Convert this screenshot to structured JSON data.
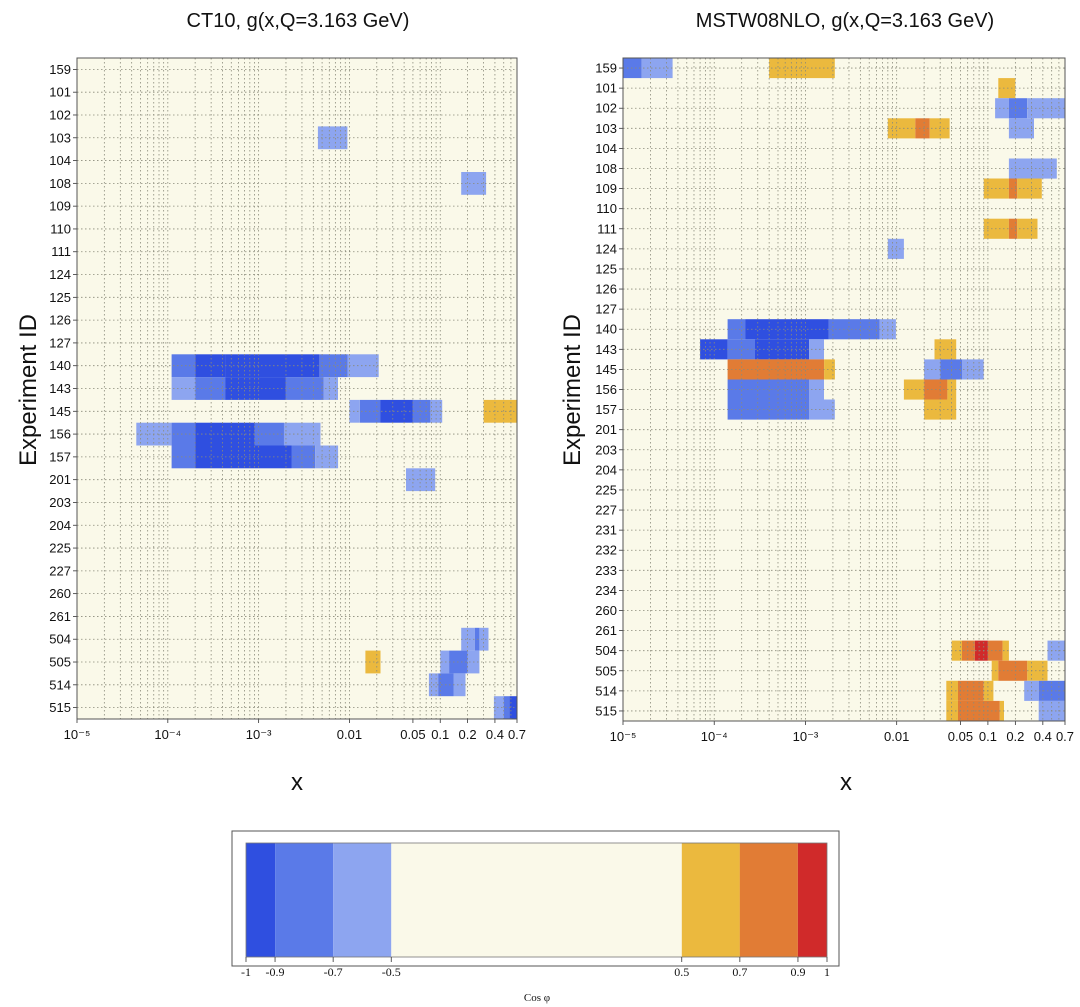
{
  "chart_data": [
    {
      "type": "heatmap",
      "title": "CT10, g(x,Q=3.163 GeV)",
      "xlabel": "x",
      "ylabel": "Experiment ID",
      "x_scale": "log",
      "xlim": [
        1e-05,
        0.7
      ],
      "x_ticks": [
        1e-05,
        0.0001,
        0.001,
        0.01,
        0.05,
        0.1,
        0.2,
        0.4,
        0.7
      ],
      "x_tick_labels": [
        "10⁻⁵",
        "10⁻⁴",
        "10⁻³",
        "0.01",
        "0.05",
        "0.1",
        "0.2",
        "0.4",
        "0.7"
      ],
      "rows": [
        "159",
        "101",
        "102",
        "103",
        "104",
        "108",
        "109",
        "110",
        "111",
        "124",
        "125",
        "126",
        "127",
        "140",
        "143",
        "145",
        "156",
        "157",
        "201",
        "203",
        "204",
        "225",
        "227",
        "260",
        "261",
        "504",
        "505",
        "514",
        "515"
      ],
      "grid": true,
      "cells": [
        {
          "row": "103",
          "x0": 0.0045,
          "x1": 0.0095,
          "cos": -0.6
        },
        {
          "row": "108",
          "x0": 0.17,
          "x1": 0.32,
          "cos": -0.6
        },
        {
          "row": "140",
          "x0": 0.00011,
          "x1": 0.0002,
          "cos": -0.8
        },
        {
          "row": "140",
          "x0": 0.0002,
          "x1": 0.00043,
          "cos": -0.95
        },
        {
          "row": "140",
          "x0": 0.00043,
          "x1": 0.0047,
          "cos": -0.95
        },
        {
          "row": "140",
          "x0": 0.0047,
          "x1": 0.0095,
          "cos": -0.8
        },
        {
          "row": "140",
          "x0": 0.0095,
          "x1": 0.021,
          "cos": -0.6
        },
        {
          "row": "143",
          "x0": 0.00011,
          "x1": 0.0002,
          "cos": -0.6
        },
        {
          "row": "143",
          "x0": 0.0002,
          "x1": 0.00043,
          "cos": -0.8
        },
        {
          "row": "143",
          "x0": 0.00043,
          "x1": 0.002,
          "cos": -0.95
        },
        {
          "row": "143",
          "x0": 0.002,
          "x1": 0.0052,
          "cos": -0.8
        },
        {
          "row": "143",
          "x0": 0.0052,
          "x1": 0.0075,
          "cos": -0.6
        },
        {
          "row": "145",
          "x0": 0.01,
          "x1": 0.013,
          "cos": -0.6
        },
        {
          "row": "145",
          "x0": 0.013,
          "x1": 0.022,
          "cos": -0.8
        },
        {
          "row": "145",
          "x0": 0.022,
          "x1": 0.05,
          "cos": -0.95
        },
        {
          "row": "145",
          "x0": 0.05,
          "x1": 0.078,
          "cos": -0.8
        },
        {
          "row": "145",
          "x0": 0.078,
          "x1": 0.105,
          "cos": -0.6
        },
        {
          "row": "145",
          "x0": 0.3,
          "x1": 0.7,
          "cos": 0.6
        },
        {
          "row": "156",
          "x0": 4.5e-05,
          "x1": 0.00011,
          "cos": -0.6
        },
        {
          "row": "156",
          "x0": 0.00011,
          "x1": 0.0002,
          "cos": -0.8
        },
        {
          "row": "156",
          "x0": 0.0002,
          "x1": 0.0009,
          "cos": -0.95
        },
        {
          "row": "156",
          "x0": 0.0009,
          "x1": 0.0019,
          "cos": -0.8
        },
        {
          "row": "156",
          "x0": 0.0019,
          "x1": 0.0048,
          "cos": -0.6
        },
        {
          "row": "157",
          "x0": 0.00011,
          "x1": 0.0002,
          "cos": -0.8
        },
        {
          "row": "157",
          "x0": 0.0002,
          "x1": 0.0023,
          "cos": -0.95
        },
        {
          "row": "157",
          "x0": 0.0023,
          "x1": 0.0042,
          "cos": -0.8
        },
        {
          "row": "157",
          "x0": 0.0042,
          "x1": 0.0075,
          "cos": -0.6
        },
        {
          "row": "201",
          "x0": 0.042,
          "x1": 0.088,
          "cos": -0.6
        },
        {
          "row": "504",
          "x0": 0.17,
          "x1": 0.24,
          "cos": -0.6
        },
        {
          "row": "504",
          "x0": 0.24,
          "x1": 0.27,
          "cos": -0.8
        },
        {
          "row": "504",
          "x0": 0.27,
          "x1": 0.34,
          "cos": -0.6
        },
        {
          "row": "505",
          "x0": 0.015,
          "x1": 0.022,
          "cos": 0.6
        },
        {
          "row": "505",
          "x0": 0.1,
          "x1": 0.125,
          "cos": -0.6
        },
        {
          "row": "505",
          "x0": 0.125,
          "x1": 0.2,
          "cos": -0.8
        },
        {
          "row": "505",
          "x0": 0.2,
          "x1": 0.27,
          "cos": -0.6
        },
        {
          "row": "514",
          "x0": 0.075,
          "x1": 0.095,
          "cos": -0.6
        },
        {
          "row": "514",
          "x0": 0.095,
          "x1": 0.14,
          "cos": -0.8
        },
        {
          "row": "514",
          "x0": 0.14,
          "x1": 0.19,
          "cos": -0.6
        },
        {
          "row": "515",
          "x0": 0.39,
          "x1": 0.5,
          "cos": -0.6
        },
        {
          "row": "515",
          "x0": 0.5,
          "x1": 0.58,
          "cos": -0.8
        },
        {
          "row": "515",
          "x0": 0.58,
          "x1": 0.7,
          "cos": -0.95
        }
      ]
    },
    {
      "type": "heatmap",
      "title": "MSTW08NLO, g(x,Q=3.163 GeV)",
      "xlabel": "x",
      "ylabel": "Experiment ID",
      "x_scale": "log",
      "xlim": [
        1e-05,
        0.7
      ],
      "x_ticks": [
        1e-05,
        0.0001,
        0.001,
        0.01,
        0.05,
        0.1,
        0.2,
        0.4,
        0.7
      ],
      "x_tick_labels": [
        "10⁻⁵",
        "10⁻⁴",
        "10⁻³",
        "0.01",
        "0.05",
        "0.1",
        "0.2",
        "0.4",
        "0.7"
      ],
      "rows": [
        "159",
        "101",
        "102",
        "103",
        "104",
        "108",
        "109",
        "110",
        "111",
        "124",
        "125",
        "126",
        "127",
        "140",
        "143",
        "145",
        "156",
        "157",
        "201",
        "203",
        "204",
        "225",
        "227",
        "231",
        "232",
        "233",
        "234",
        "260",
        "261",
        "504",
        "505",
        "514",
        "515"
      ],
      "grid": true,
      "cells": [
        {
          "row": "159",
          "x0": 1e-05,
          "x1": 1.6e-05,
          "cos": -0.8
        },
        {
          "row": "159",
          "x0": 1.6e-05,
          "x1": 3.5e-05,
          "cos": -0.6
        },
        {
          "row": "159",
          "x0": 0.0004,
          "x1": 0.0021,
          "cos": 0.6
        },
        {
          "row": "101",
          "x0": 0.13,
          "x1": 0.2,
          "cos": 0.6
        },
        {
          "row": "102",
          "x0": 0.12,
          "x1": 0.17,
          "cos": -0.6
        },
        {
          "row": "102",
          "x0": 0.17,
          "x1": 0.27,
          "cos": -0.8
        },
        {
          "row": "102",
          "x0": 0.27,
          "x1": 0.7,
          "cos": -0.6
        },
        {
          "row": "103",
          "x0": 0.008,
          "x1": 0.016,
          "cos": 0.6
        },
        {
          "row": "103",
          "x0": 0.016,
          "x1": 0.023,
          "cos": 0.8
        },
        {
          "row": "103",
          "x0": 0.023,
          "x1": 0.038,
          "cos": 0.6
        },
        {
          "row": "103",
          "x0": 0.17,
          "x1": 0.32,
          "cos": -0.6
        },
        {
          "row": "108",
          "x0": 0.17,
          "x1": 0.57,
          "cos": -0.6
        },
        {
          "row": "109",
          "x0": 0.09,
          "x1": 0.17,
          "cos": 0.6
        },
        {
          "row": "109",
          "x0": 0.17,
          "x1": 0.21,
          "cos": 0.8
        },
        {
          "row": "109",
          "x0": 0.21,
          "x1": 0.39,
          "cos": 0.6
        },
        {
          "row": "111",
          "x0": 0.09,
          "x1": 0.17,
          "cos": 0.6
        },
        {
          "row": "111",
          "x0": 0.17,
          "x1": 0.21,
          "cos": 0.8
        },
        {
          "row": "111",
          "x0": 0.21,
          "x1": 0.35,
          "cos": 0.6
        },
        {
          "row": "124",
          "x0": 0.008,
          "x1": 0.012,
          "cos": -0.6
        },
        {
          "row": "140",
          "x0": 0.00014,
          "x1": 0.00022,
          "cos": -0.8
        },
        {
          "row": "140",
          "x0": 0.00022,
          "x1": 0.0018,
          "cos": -0.95
        },
        {
          "row": "140",
          "x0": 0.0018,
          "x1": 0.0065,
          "cos": -0.8
        },
        {
          "row": "140",
          "x0": 0.0065,
          "x1": 0.0098,
          "cos": -0.6
        },
        {
          "row": "143",
          "x0": 7e-05,
          "x1": 0.00014,
          "cos": -0.95
        },
        {
          "row": "143",
          "x0": 0.00014,
          "x1": 0.00028,
          "cos": -0.8
        },
        {
          "row": "143",
          "x0": 0.00028,
          "x1": 0.0011,
          "cos": -0.95
        },
        {
          "row": "143",
          "x0": 0.0011,
          "x1": 0.0016,
          "cos": -0.6
        },
        {
          "row": "143",
          "x0": 0.026,
          "x1": 0.045,
          "cos": 0.6
        },
        {
          "row": "145",
          "x0": 0.00014,
          "x1": 0.0016,
          "cos": 0.8
        },
        {
          "row": "145",
          "x0": 0.0016,
          "x1": 0.0021,
          "cos": 0.6
        },
        {
          "row": "145",
          "x0": 0.02,
          "x1": 0.03,
          "cos": -0.6
        },
        {
          "row": "145",
          "x0": 0.03,
          "x1": 0.052,
          "cos": -0.8
        },
        {
          "row": "145",
          "x0": 0.052,
          "x1": 0.09,
          "cos": -0.6
        },
        {
          "row": "156",
          "x0": 0.00014,
          "x1": 0.0011,
          "cos": -0.8
        },
        {
          "row": "156",
          "x0": 0.0011,
          "x1": 0.0016,
          "cos": -0.6
        },
        {
          "row": "156",
          "x0": 0.012,
          "x1": 0.02,
          "cos": 0.6
        },
        {
          "row": "156",
          "x0": 0.02,
          "x1": 0.036,
          "cos": 0.8
        },
        {
          "row": "156",
          "x0": 0.036,
          "x1": 0.045,
          "cos": 0.6
        },
        {
          "row": "157",
          "x0": 0.00014,
          "x1": 0.0011,
          "cos": -0.8
        },
        {
          "row": "157",
          "x0": 0.0011,
          "x1": 0.0021,
          "cos": -0.6
        },
        {
          "row": "157",
          "x0": 0.02,
          "x1": 0.045,
          "cos": 0.6
        },
        {
          "row": "504",
          "x0": 0.04,
          "x1": 0.052,
          "cos": 0.6
        },
        {
          "row": "504",
          "x0": 0.052,
          "x1": 0.072,
          "cos": 0.8
        },
        {
          "row": "504",
          "x0": 0.072,
          "x1": 0.1,
          "cos": 0.95
        },
        {
          "row": "504",
          "x0": 0.1,
          "x1": 0.145,
          "cos": 0.8
        },
        {
          "row": "504",
          "x0": 0.145,
          "x1": 0.17,
          "cos": 0.6
        },
        {
          "row": "504",
          "x0": 0.45,
          "x1": 0.7,
          "cos": -0.6
        },
        {
          "row": "505",
          "x0": 0.11,
          "x1": 0.13,
          "cos": 0.6
        },
        {
          "row": "505",
          "x0": 0.13,
          "x1": 0.27,
          "cos": 0.8
        },
        {
          "row": "505",
          "x0": 0.27,
          "x1": 0.45,
          "cos": 0.6
        },
        {
          "row": "514",
          "x0": 0.035,
          "x1": 0.047,
          "cos": 0.6
        },
        {
          "row": "514",
          "x0": 0.047,
          "x1": 0.09,
          "cos": 0.8
        },
        {
          "row": "514",
          "x0": 0.09,
          "x1": 0.115,
          "cos": 0.6
        },
        {
          "row": "514",
          "x0": 0.25,
          "x1": 0.36,
          "cos": -0.6
        },
        {
          "row": "514",
          "x0": 0.36,
          "x1": 0.7,
          "cos": -0.8
        },
        {
          "row": "515",
          "x0": 0.035,
          "x1": 0.047,
          "cos": 0.6
        },
        {
          "row": "515",
          "x0": 0.047,
          "x1": 0.135,
          "cos": 0.8
        },
        {
          "row": "515",
          "x0": 0.135,
          "x1": 0.15,
          "cos": 0.6
        },
        {
          "row": "515",
          "x0": 0.36,
          "x1": 0.7,
          "cos": -0.6
        }
      ]
    }
  ],
  "colorbar": {
    "label": "Cos φ",
    "range": [
      -1,
      1
    ],
    "ticks": [
      -1,
      -0.9,
      -0.7,
      -0.5,
      0.5,
      0.7,
      0.9,
      1
    ],
    "tick_labels": [
      "-1",
      "-0.9",
      "-0.7",
      "-0.5",
      "0.5",
      "0.7",
      "0.9",
      "1"
    ],
    "bands": [
      {
        "from": -1,
        "to": -0.9,
        "color": "#2f4fe0"
      },
      {
        "from": -0.9,
        "to": -0.7,
        "color": "#5a7ae8"
      },
      {
        "from": -0.7,
        "to": -0.5,
        "color": "#8da5f0"
      },
      {
        "from": -0.5,
        "to": 0.5,
        "color": "#faf9e9"
      },
      {
        "from": 0.5,
        "to": 0.7,
        "color": "#ebb93e"
      },
      {
        "from": 0.7,
        "to": 0.9,
        "color": "#e17c35"
      },
      {
        "from": 0.9,
        "to": 1,
        "color": "#d02a2a"
      }
    ]
  },
  "colors": {
    "background": "#faf9e9",
    "grid": "#8a8a7a"
  }
}
